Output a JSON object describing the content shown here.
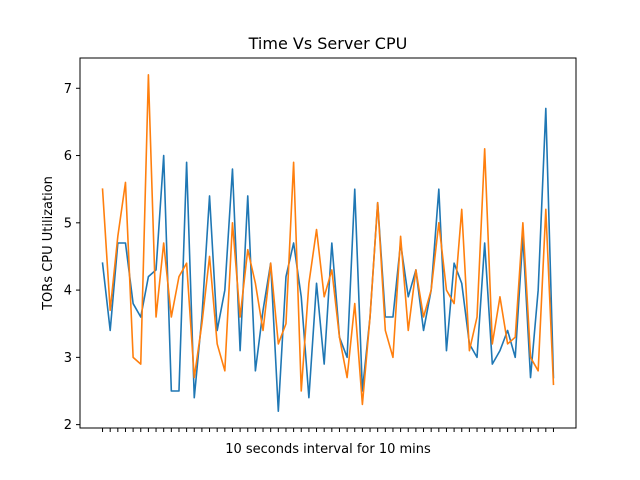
{
  "chart_data": {
    "type": "line",
    "title": "Time Vs Server CPU",
    "xlabel": "10 seconds interval for 10 mins",
    "ylabel": "TORs CPU Utilization",
    "ylim": [
      1.95,
      7.45
    ],
    "yticks": [
      2,
      3,
      4,
      5,
      6,
      7
    ],
    "x_tick_labels_shown": false,
    "grid": false,
    "legend": "none",
    "x": [
      1,
      2,
      3,
      4,
      5,
      6,
      7,
      8,
      9,
      10,
      11,
      12,
      13,
      14,
      15,
      16,
      17,
      18,
      19,
      20,
      21,
      22,
      23,
      24,
      25,
      26,
      27,
      28,
      29,
      30,
      31,
      32,
      33,
      34,
      35,
      36,
      37,
      38,
      39,
      40,
      41,
      42,
      43,
      44,
      45,
      46,
      47,
      48,
      49,
      50,
      51,
      52,
      53,
      54,
      55,
      56,
      57,
      58,
      59,
      60
    ],
    "series": [
      {
        "color": "#1f77b4",
        "values": [
          4.4,
          3.4,
          4.7,
          4.7,
          3.8,
          3.6,
          4.2,
          4.3,
          6.0,
          2.5,
          2.5,
          5.9,
          2.4,
          3.6,
          5.4,
          3.4,
          4.0,
          5.8,
          3.1,
          5.4,
          2.8,
          3.7,
          4.4,
          2.2,
          4.2,
          4.7,
          3.9,
          2.4,
          4.1,
          2.9,
          4.7,
          3.3,
          3.0,
          5.5,
          2.5,
          3.6,
          5.3,
          3.6,
          3.6,
          4.7,
          3.9,
          4.3,
          3.4,
          4.0,
          5.5,
          3.1,
          4.4,
          4.1,
          3.2,
          3.0,
          4.7,
          2.9,
          3.1,
          3.4,
          3.0,
          4.8,
          2.7,
          4.0,
          6.7,
          2.7
        ]
      },
      {
        "color": "#ff7f0e",
        "values": [
          5.5,
          3.7,
          4.8,
          5.6,
          3.0,
          2.9,
          7.2,
          3.6,
          4.7,
          3.6,
          4.2,
          4.4,
          2.7,
          3.5,
          4.5,
          3.2,
          2.8,
          5.0,
          3.6,
          4.6,
          4.1,
          3.4,
          4.4,
          3.2,
          3.5,
          5.9,
          2.5,
          4.1,
          4.9,
          3.9,
          4.3,
          3.3,
          2.7,
          3.8,
          2.3,
          3.6,
          5.3,
          3.4,
          3.0,
          4.8,
          3.4,
          4.3,
          3.6,
          4.0,
          5.0,
          4.0,
          3.8,
          5.2,
          3.1,
          3.6,
          6.1,
          3.2,
          3.9,
          3.2,
          3.3,
          5.0,
          3.0,
          2.8,
          5.2,
          2.6
        ]
      }
    ]
  }
}
